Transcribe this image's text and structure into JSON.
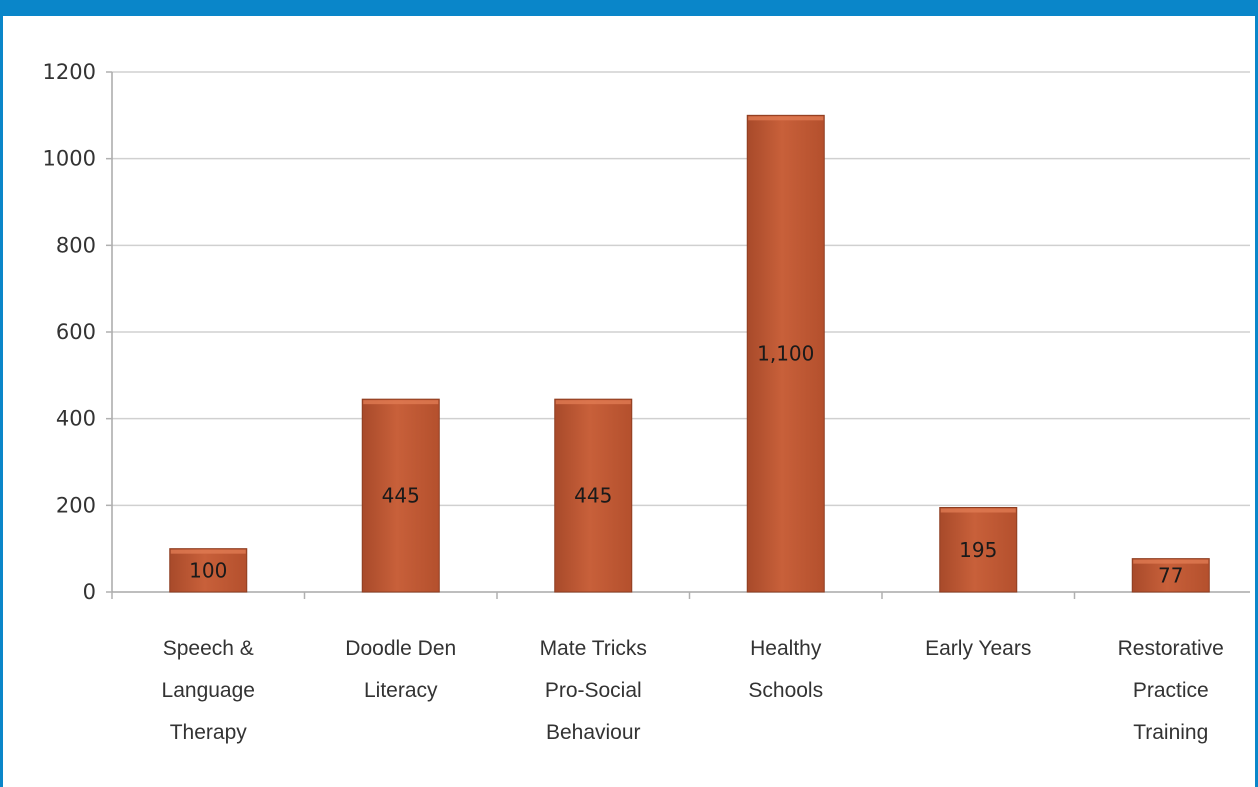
{
  "header": {
    "title": ""
  },
  "colors": {
    "title_bar": "#0a86c9",
    "bar_fill": "#c8603a",
    "bar_stroke": "#8e3d20",
    "gridline": "#d0d0d0"
  },
  "chart_data": {
    "type": "bar",
    "title": "",
    "xlabel": "",
    "ylabel": "",
    "ylim": [
      0,
      1200
    ],
    "yticks": [
      0,
      200,
      400,
      600,
      800,
      1000,
      1200
    ],
    "grid": true,
    "legend": "none",
    "categories": [
      [
        "Speech &",
        "Language",
        "Therapy"
      ],
      [
        "Doodle Den",
        "Literacy"
      ],
      [
        "Mate Tricks",
        "Pro-Social",
        "Behaviour"
      ],
      [
        "Healthy",
        "Schools"
      ],
      [
        "Early Years"
      ],
      [
        "Restorative",
        "Practice",
        "Training"
      ]
    ],
    "values": [
      100,
      445,
      445,
      1100,
      195,
      77
    ],
    "data_labels": [
      "100",
      "445",
      "445",
      "1,100",
      "195",
      "77"
    ]
  }
}
